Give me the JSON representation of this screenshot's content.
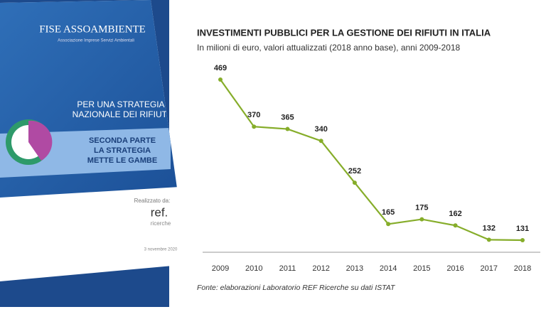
{
  "chart_data": {
    "type": "line",
    "title": "INVESTIMENTI PUBBLICI PER LA GESTIONE DEI RIFIUTI IN ITALIA",
    "subtitle": "In milioni di euro, valori attualizzati (2018 anno base), anni 2009-2018",
    "source": "Fonte: elaborazioni Laboratorio REF Ricerche su dati ISTAT",
    "categories": [
      "2009",
      "2010",
      "2011",
      "2012",
      "2013",
      "2014",
      "2015",
      "2016",
      "2017",
      "2018"
    ],
    "values": [
      469,
      370,
      365,
      340,
      252,
      165,
      175,
      162,
      132,
      131
    ],
    "color": "#86ad2a"
  },
  "cover": {
    "brand": "FISE ASSOAMBIENTE",
    "brand_sub": "Associazione Imprese Servizi Ambientali",
    "title_lines": [
      "PER UNA STRATEGIA",
      "NAZIONALE DEI RIFIUTI"
    ],
    "part_lines": [
      "SECONDA PARTE",
      "LA STRATEGIA",
      "METTE LE GAMBE"
    ],
    "made_by": "Realizzato da:",
    "logo": "ref.",
    "logo_sub": "ricerche",
    "date": "3 novembre 2020"
  }
}
